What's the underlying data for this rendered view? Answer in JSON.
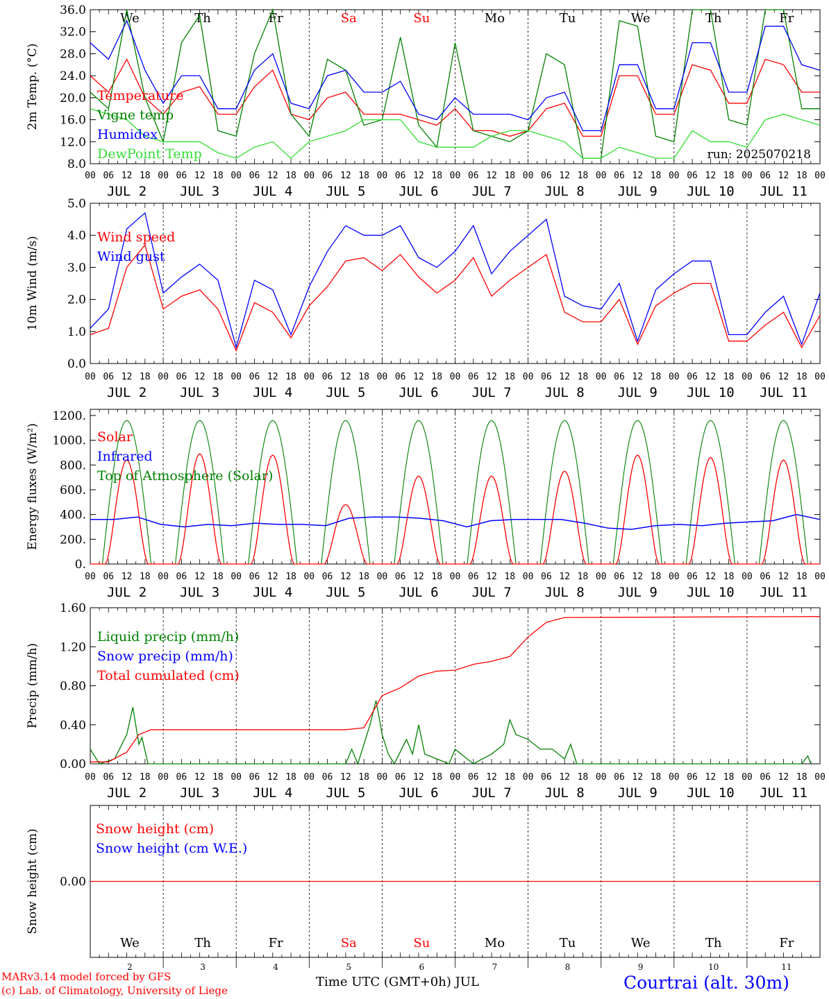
{
  "colors": {
    "red": "#ff0000",
    "green": "#008000",
    "blue": "#0000ff",
    "lightgreen": "#33dd33",
    "grid": "#000000"
  },
  "days": {
    "weekday_labels": [
      "We",
      "Th",
      "Fr",
      "Sa",
      "Su",
      "Mo",
      "Tu",
      "We",
      "Th",
      "Fr"
    ],
    "weekend_index": [
      3,
      4
    ],
    "date_labels": [
      "JUL  2",
      "JUL  3",
      "JUL  4",
      "JUL  5",
      "JUL  6",
      "JUL  7",
      "JUL  8",
      "JUL  9",
      "JUL 10",
      "JUL 11"
    ],
    "day_numbers": [
      "2",
      "3",
      "4",
      "5",
      "6",
      "7",
      "8",
      "9",
      "10",
      "11"
    ],
    "hour_ticks": [
      "00",
      "06",
      "12",
      "18"
    ],
    "final_tick": "00"
  },
  "run_label": "run: 2025070218",
  "footer": {
    "model": "MARv3.14 model forced by GFS",
    "lab": "(c) Lab. of Climatology, University of Liege",
    "xlabel": "Time UTC (GMT+0h) JUL",
    "station": "Courtrai (alt. 30m)"
  },
  "chart_data": [
    {
      "type": "line",
      "ylabel": "2m Temp. (°C)",
      "ylim": [
        8,
        36
      ],
      "yticks": [
        "8.0",
        "12.0",
        "16.0",
        "20.0",
        "24.0",
        "28.0",
        "32.0",
        "36.0"
      ],
      "x_hours": [
        0,
        6,
        12,
        18,
        24,
        30,
        36,
        42,
        48,
        54,
        60,
        66,
        72,
        78,
        84,
        90,
        96,
        102,
        108,
        114,
        120,
        126,
        132,
        138,
        144,
        150,
        156,
        162,
        168,
        174,
        180,
        186,
        192,
        198,
        204,
        210,
        216,
        222,
        228,
        234,
        240
      ],
      "series": [
        {
          "name": "Temperature",
          "color": "#ff0000",
          "values": [
            24,
            21,
            27,
            20,
            17,
            21,
            22,
            17,
            17,
            22,
            25,
            17,
            16,
            20,
            21,
            17,
            17,
            17,
            16,
            15,
            18,
            14,
            14,
            13,
            14,
            18,
            19,
            13,
            13,
            24,
            24,
            17,
            17,
            26,
            25,
            19,
            19,
            27,
            26,
            21,
            21
          ]
        },
        {
          "name": "Vigne temp",
          "color": "#008000",
          "values": [
            21,
            18,
            36,
            20,
            12,
            30,
            35,
            14,
            13,
            28,
            36,
            17,
            13,
            27,
            25,
            15,
            16,
            31,
            15,
            11,
            30,
            14,
            13,
            12,
            14,
            28,
            26,
            9,
            9,
            34,
            33,
            13,
            12,
            36,
            36,
            16,
            15,
            36,
            36,
            18,
            18
          ]
        },
        {
          "name": "Humidex",
          "color": "#0000ff",
          "values": [
            30,
            27,
            34,
            25,
            19,
            24,
            24,
            18,
            18,
            25,
            28,
            19,
            18,
            24,
            25,
            21,
            21,
            23,
            17,
            16,
            20,
            17,
            17,
            17,
            16,
            20,
            21,
            14,
            14,
            26,
            26,
            18,
            18,
            30,
            30,
            21,
            21,
            33,
            33,
            26,
            25
          ]
        },
        {
          "name": "DewPoint Temp",
          "color": "#33dd33",
          "values": [
            18,
            17,
            16,
            13,
            12,
            12,
            12,
            10,
            9,
            11,
            12,
            9,
            12,
            13,
            14,
            16,
            16,
            16,
            12,
            11,
            11,
            11,
            13,
            14,
            14,
            13,
            12,
            9,
            9,
            11,
            10,
            9,
            9,
            14,
            12,
            12,
            11,
            16,
            17,
            16,
            15
          ]
        }
      ]
    },
    {
      "type": "line",
      "ylabel": "10m Wind (m/s)",
      "ylim": [
        0,
        5
      ],
      "yticks": [
        "0.0",
        "1.0",
        "2.0",
        "3.0",
        "4.0",
        "5.0"
      ],
      "x_hours": [
        0,
        6,
        12,
        18,
        24,
        30,
        36,
        42,
        48,
        54,
        60,
        66,
        72,
        78,
        84,
        90,
        96,
        102,
        108,
        114,
        120,
        126,
        132,
        138,
        144,
        150,
        156,
        162,
        168,
        174,
        180,
        186,
        192,
        198,
        204,
        210,
        216,
        222,
        228,
        234,
        240
      ],
      "series": [
        {
          "name": "Wind speed",
          "color": "#ff0000",
          "values": [
            0.9,
            1.1,
            3.0,
            3.7,
            1.7,
            2.1,
            2.3,
            1.7,
            0.4,
            1.9,
            1.6,
            0.8,
            1.8,
            2.4,
            3.2,
            3.3,
            2.9,
            3.4,
            2.7,
            2.2,
            2.6,
            3.3,
            2.1,
            2.6,
            3.0,
            3.4,
            1.6,
            1.3,
            1.3,
            2.0,
            0.6,
            1.8,
            2.2,
            2.5,
            2.5,
            0.7,
            0.7,
            1.2,
            1.6,
            0.5,
            1.5
          ]
        },
        {
          "name": "Wind gust",
          "color": "#0000ff",
          "values": [
            1.1,
            1.7,
            4.2,
            4.7,
            2.2,
            2.7,
            3.1,
            2.6,
            0.5,
            2.6,
            2.3,
            0.9,
            2.4,
            3.5,
            4.3,
            4.0,
            4.0,
            4.3,
            3.3,
            3.0,
            3.5,
            4.3,
            2.8,
            3.5,
            4.0,
            4.5,
            2.1,
            1.8,
            1.7,
            2.5,
            0.7,
            2.3,
            2.8,
            3.2,
            3.2,
            0.9,
            0.9,
            1.6,
            2.1,
            0.6,
            2.2
          ]
        }
      ]
    },
    {
      "type": "line",
      "ylabel": "Energy fluxes (W/m²)",
      "ylim": [
        0,
        1250
      ],
      "yticks": [
        "0.",
        "200.",
        "400.",
        "600.",
        "800.",
        "1000.",
        "1200."
      ],
      "series": [
        {
          "name": "Solar",
          "color": "#ff0000",
          "daily_peaks": [
            840,
            890,
            880,
            480,
            710,
            710,
            750,
            880,
            860,
            840
          ]
        },
        {
          "name": "Infrared",
          "color": "#0000ff",
          "values": [
            360,
            360,
            380,
            320,
            300,
            320,
            310,
            330,
            320,
            320,
            310,
            370,
            380,
            380,
            370,
            350,
            300,
            350,
            360,
            360,
            360,
            330,
            290,
            280,
            310,
            320,
            310,
            330,
            340,
            350,
            400,
            360
          ]
        },
        {
          "name": "Top of Atmosphere (Solar)",
          "color": "#008000",
          "daily_peak": 1160
        }
      ]
    },
    {
      "type": "line",
      "ylabel": "Precip (mm/h)",
      "ylim": [
        0,
        1.6
      ],
      "yticks": [
        "0.00",
        "0.40",
        "0.80",
        "1.20",
        "1.60"
      ],
      "series": [
        {
          "name": "Liquid precip (mm/h)",
          "color": "#008000",
          "points": [
            [
              0,
              0.15
            ],
            [
              3,
              0
            ],
            [
              8,
              0.05
            ],
            [
              12,
              0.3
            ],
            [
              14,
              0.58
            ],
            [
              16,
              0.2
            ],
            [
              17,
              0.27
            ],
            [
              19,
              0
            ],
            [
              84,
              0
            ],
            [
              86,
              0.15
            ],
            [
              88,
              0
            ],
            [
              92,
              0.4
            ],
            [
              94,
              0.65
            ],
            [
              96,
              0.3
            ],
            [
              98,
              0.1
            ],
            [
              100,
              0
            ],
            [
              104,
              0.25
            ],
            [
              106,
              0.1
            ],
            [
              108,
              0.4
            ],
            [
              110,
              0.1
            ],
            [
              114,
              0.05
            ],
            [
              118,
              0
            ],
            [
              120,
              0.15
            ],
            [
              124,
              0.05
            ],
            [
              126,
              0
            ],
            [
              132,
              0.1
            ],
            [
              136,
              0.2
            ],
            [
              138,
              0.45
            ],
            [
              140,
              0.3
            ],
            [
              144,
              0.25
            ],
            [
              148,
              0.15
            ],
            [
              152,
              0.15
            ],
            [
              156,
              0.05
            ],
            [
              158,
              0.2
            ],
            [
              160,
              0
            ],
            [
              234,
              0
            ],
            [
              236,
              0.08
            ],
            [
              237,
              0
            ]
          ]
        },
        {
          "name": "Snow precip (mm/h)",
          "color": "#0000ff",
          "points": []
        },
        {
          "name": "Total cumulated (cm)",
          "color": "#ff0000",
          "points": [
            [
              0,
              0.02
            ],
            [
              6,
              0.02
            ],
            [
              12,
              0.12
            ],
            [
              16,
              0.3
            ],
            [
              20,
              0.35
            ],
            [
              84,
              0.35
            ],
            [
              90,
              0.37
            ],
            [
              96,
              0.7
            ],
            [
              102,
              0.78
            ],
            [
              108,
              0.9
            ],
            [
              114,
              0.95
            ],
            [
              120,
              0.96
            ],
            [
              126,
              1.02
            ],
            [
              132,
              1.05
            ],
            [
              138,
              1.1
            ],
            [
              144,
              1.3
            ],
            [
              150,
              1.45
            ],
            [
              156,
              1.5
            ],
            [
              240,
              1.51
            ]
          ]
        }
      ]
    },
    {
      "type": "line",
      "ylabel": "Snow height (cm)",
      "ylim": [
        -1,
        1
      ],
      "yticks": [
        "0.00"
      ],
      "series": [
        {
          "name": "Snow height (cm)",
          "color": "#ff0000",
          "points": [
            [
              0,
              0
            ],
            [
              240,
              0
            ]
          ]
        },
        {
          "name": "Snow height (cm W.E.)",
          "color": "#0000ff",
          "points": []
        }
      ]
    }
  ]
}
